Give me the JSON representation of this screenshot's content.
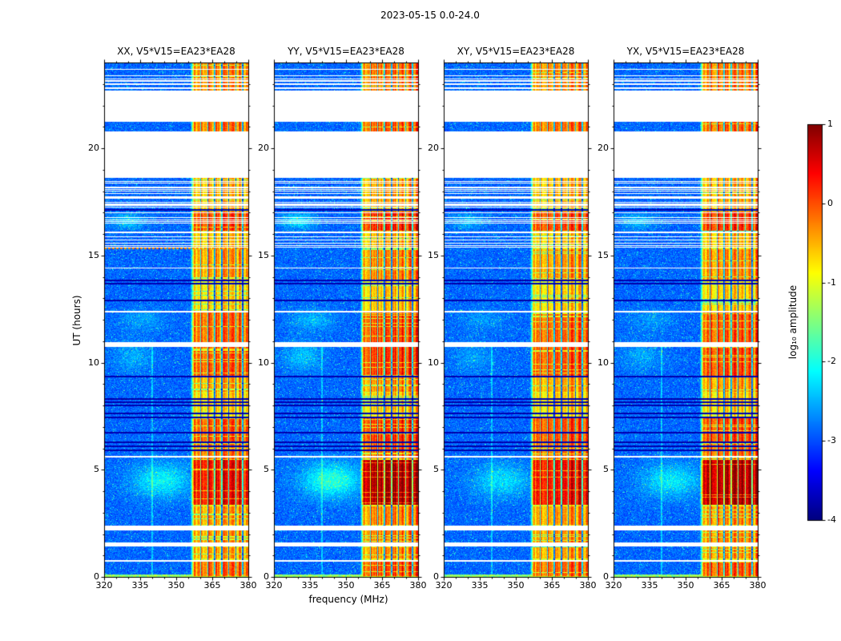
{
  "chart_data": {
    "type": "heatmap",
    "title": "2023-05-15 0.0-24.0",
    "panels": [
      {
        "title": "XX, V5*V15=EA23*EA28"
      },
      {
        "title": "YY, V5*V15=EA23*EA28"
      },
      {
        "title": "XY, V5*V15=EA23*EA28"
      },
      {
        "title": "YX, V5*V15=EA23*EA28"
      }
    ],
    "x_axis": {
      "label": "frequency (MHz)",
      "range": [
        320,
        380
      ],
      "major_ticks": [
        320,
        335,
        350,
        365,
        380
      ],
      "minor_step": 5
    },
    "y_axis": {
      "label": "UT (hours)",
      "range": [
        0,
        24
      ],
      "major_ticks": [
        0,
        5,
        10,
        15,
        20
      ],
      "minor_step": 1
    },
    "colorbar": {
      "label": "log₁₀ amplitude",
      "range": [
        -4,
        1
      ],
      "ticks": [
        1,
        0,
        -1,
        -2,
        -3,
        -4
      ],
      "colormap": "jet"
    },
    "features": {
      "time_gaps": [
        [
          18.62,
          20.78
        ],
        [
          21.22,
          22.68
        ],
        [
          10.72,
          10.97
        ],
        [
          2.18,
          2.4
        ],
        [
          1.42,
          1.6
        ],
        [
          5.58,
          5.65
        ],
        [
          12.33,
          12.4
        ],
        [
          14.38,
          14.44
        ],
        [
          0.72,
          0.78
        ]
      ],
      "stripe_regions": [
        [
          15.38,
          18.62
        ],
        [
          22.68,
          23.98
        ]
      ],
      "dark_lines": [
        5.92,
        6.1,
        6.28,
        6.72,
        7.45,
        7.62,
        8.0,
        8.15,
        8.3,
        9.33,
        12.9,
        13.68,
        13.83,
        17.12
      ],
      "rfi_band": {
        "f_start": 356,
        "f_end": 380,
        "base_level": 0.45,
        "dark_columns": [
          360.2,
          363.1,
          366.0,
          369.0,
          371.9,
          374.8,
          377.7
        ],
        "events": [
          [
            0.05,
            0.8,
            0.95
          ],
          [
            0.85,
            1.4,
            0.75
          ],
          [
            1.62,
            2.16,
            0.8
          ],
          [
            2.44,
            3.3,
            0.78
          ],
          [
            3.35,
            5.45,
            1.25
          ],
          [
            5.48,
            6.26,
            0.9
          ],
          [
            6.3,
            7.42,
            1.0
          ],
          [
            7.7,
            8.6,
            0.6
          ],
          [
            8.62,
            9.3,
            0.75
          ],
          [
            9.35,
            11.0,
            1.0
          ],
          [
            11.0,
            12.35,
            0.95
          ],
          [
            12.4,
            13.6,
            0.6
          ],
          [
            13.85,
            15.3,
            0.78
          ],
          [
            15.35,
            16.1,
            0.65
          ],
          [
            16.15,
            17.05,
            1.05
          ],
          [
            17.08,
            18.62,
            0.7
          ],
          [
            20.78,
            21.22,
            0.9
          ],
          [
            22.68,
            23.98,
            0.85
          ]
        ]
      },
      "haze": [
        {
          "t": 4.5,
          "tw": 0.8,
          "f": 344,
          "fw": 12,
          "amp": 0.75
        },
        {
          "t": 10.3,
          "tw": 0.7,
          "f": 332,
          "fw": 8,
          "amp": 0.35
        },
        {
          "t": 16.6,
          "tw": 0.35,
          "f": 330,
          "fw": 7,
          "amp": 0.55
        },
        {
          "t": 12.0,
          "tw": 0.5,
          "f": 336,
          "fw": 9,
          "amp": 0.3
        }
      ],
      "bright_column_mhz": 340,
      "dotted_line_t": 15.32,
      "panel_band_gain": [
        1.0,
        1.1,
        1.0,
        1.08
      ],
      "panel_haze_gain": [
        1.0,
        1.3,
        0.8,
        0.9
      ]
    }
  }
}
